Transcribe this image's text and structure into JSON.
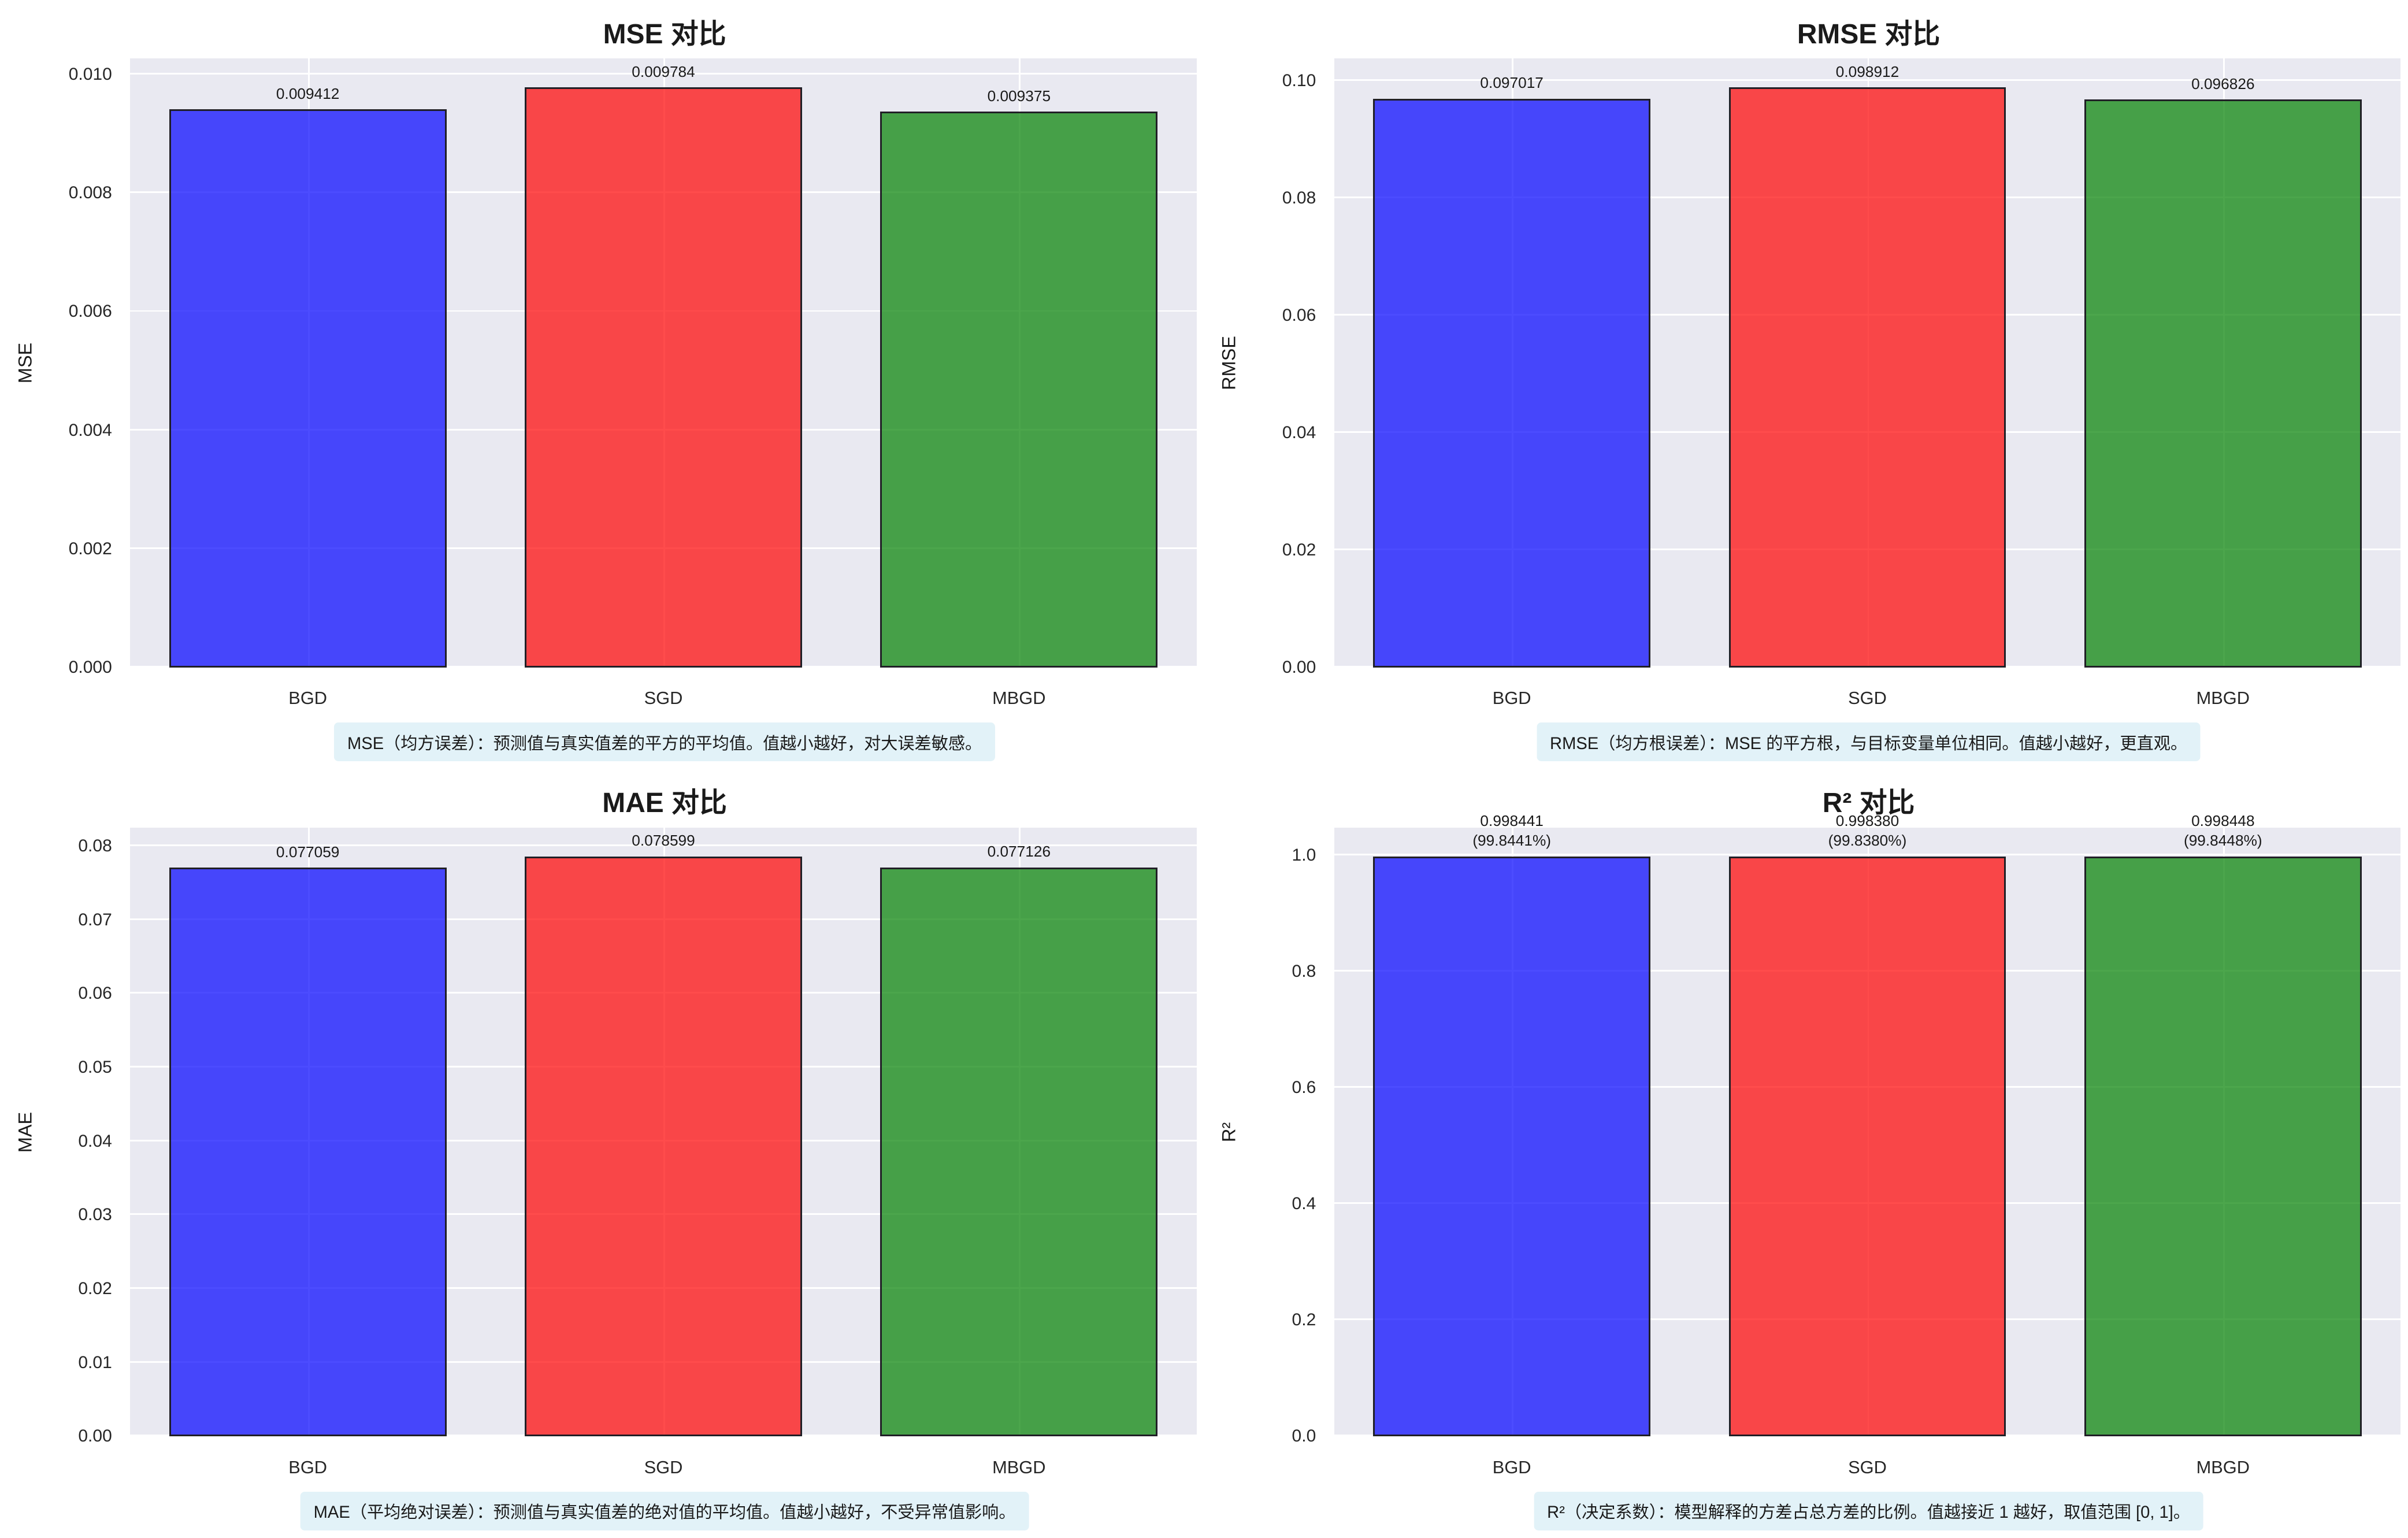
{
  "figure": {
    "layout": "2x2",
    "background": "#ffffff",
    "description_boxes_visible": true
  },
  "colors": {
    "plot_background": "#e9e9f1",
    "gridline": "#ffffff",
    "bar_fills_rgba": [
      "rgba(0,0,255,0.70)",
      "rgba(255,0,0,0.70)",
      "rgba(0,128,0,0.70)"
    ],
    "bar_fills_apparent": [
      "#4646f2",
      "#f44545",
      "#469a48"
    ],
    "bar_edge": "#201f26",
    "note_background": "#e2f2f8",
    "text": "#1a1a1a"
  },
  "categories": [
    "BGD",
    "SGD",
    "MBGD"
  ],
  "chart_data": [
    {
      "type": "bar",
      "title": "MSE 对比",
      "ylabel": "MSE",
      "xlabel": "",
      "categories": [
        "BGD",
        "SGD",
        "MBGD"
      ],
      "values": [
        0.009412,
        0.009784,
        0.009375
      ],
      "bar_labels": [
        "0.009412",
        "0.009784",
        "0.009375"
      ],
      "yticks": [
        "0.000",
        "0.002",
        "0.004",
        "0.006",
        "0.008",
        "0.010"
      ],
      "ytick_values": [
        0,
        0.002,
        0.004,
        0.006,
        0.008,
        0.01
      ],
      "ylim": [
        0,
        0.0102732
      ],
      "grid": true,
      "legend": "none",
      "note": "MSE（均方误差）：预测值与真实值差的平方的平均值。值越小越好，对大误差敏感。"
    },
    {
      "type": "bar",
      "title": "RMSE 对比",
      "ylabel": "RMSE",
      "xlabel": "",
      "categories": [
        "BGD",
        "SGD",
        "MBGD"
      ],
      "values": [
        0.097017,
        0.098912,
        0.096826
      ],
      "bar_labels": [
        "0.097017",
        "0.098912",
        "0.096826"
      ],
      "yticks": [
        "0.00",
        "0.02",
        "0.04",
        "0.06",
        "0.08",
        "0.10"
      ],
      "ytick_values": [
        0,
        0.02,
        0.04,
        0.06,
        0.08,
        0.1
      ],
      "ylim": [
        0,
        0.1038576
      ],
      "grid": true,
      "legend": "none",
      "note": "RMSE（均方根误差）：MSE 的平方根，与目标变量单位相同。值越小越好，更直观。"
    },
    {
      "type": "bar",
      "title": "MAE 对比",
      "ylabel": "MAE",
      "xlabel": "",
      "categories": [
        "BGD",
        "SGD",
        "MBGD"
      ],
      "values": [
        0.077059,
        0.078599,
        0.077126
      ],
      "bar_labels": [
        "0.077059",
        "0.078599",
        "0.077126"
      ],
      "yticks": [
        "0.00",
        "0.01",
        "0.02",
        "0.03",
        "0.04",
        "0.05",
        "0.06",
        "0.07",
        "0.08"
      ],
      "ytick_values": [
        0,
        0.01,
        0.02,
        0.03,
        0.04,
        0.05,
        0.06,
        0.07,
        0.08
      ],
      "ylim": [
        0,
        0.082529
      ],
      "grid": true,
      "legend": "none",
      "note": "MAE（平均绝对误差）：预测值与真实值差的绝对值的平均值。值越小越好，不受异常值影响。"
    },
    {
      "type": "bar",
      "title": "R² 对比",
      "ylabel": "R²",
      "xlabel": "",
      "categories": [
        "BGD",
        "SGD",
        "MBGD"
      ],
      "values": [
        0.998441,
        0.99838,
        0.998448
      ],
      "bar_labels": [
        "0.998441",
        "0.998380",
        "0.998448"
      ],
      "bar_sublabels": [
        "(99.8441%)",
        "(99.8380%)",
        "(99.8448%)"
      ],
      "yticks": [
        "0.0",
        "0.2",
        "0.4",
        "0.6",
        "0.8",
        "1.0"
      ],
      "ytick_values": [
        0,
        0.2,
        0.4,
        0.6,
        0.8,
        1.0
      ],
      "ylim": [
        0,
        1.0483704
      ],
      "grid": true,
      "legend": "none",
      "note": "R²（决定系数）：模型解释的方差占总方差的比例。值越接近 1 越好，取值范围 [0, 1]。"
    }
  ]
}
